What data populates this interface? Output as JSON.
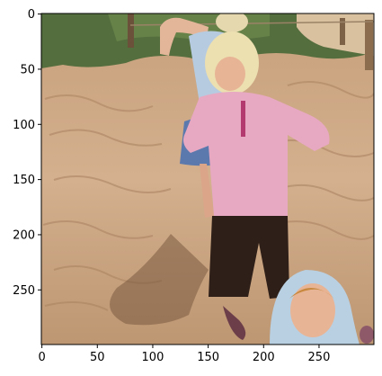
{
  "figure": {
    "x_ticks": [
      "0",
      "50",
      "100",
      "150",
      "200",
      "250"
    ],
    "y_ticks": [
      "0",
      "50",
      "100",
      "150",
      "200",
      "250"
    ],
    "x_range": [
      0,
      299
    ],
    "y_range": [
      0,
      299
    ]
  },
  "scene": {
    "sand_color": "#c9a582",
    "sand_shadow_color": "#a8805d",
    "grass_color": "#4f6b3a",
    "shirt_pink": "#e8a9c3",
    "pants_dark": "#2b1d16",
    "skirt_blue": "#5f7fb3",
    "hood_blue": "#b8cfe0",
    "hair_blonde": "#eadca8",
    "skin": "#e9b89a"
  }
}
